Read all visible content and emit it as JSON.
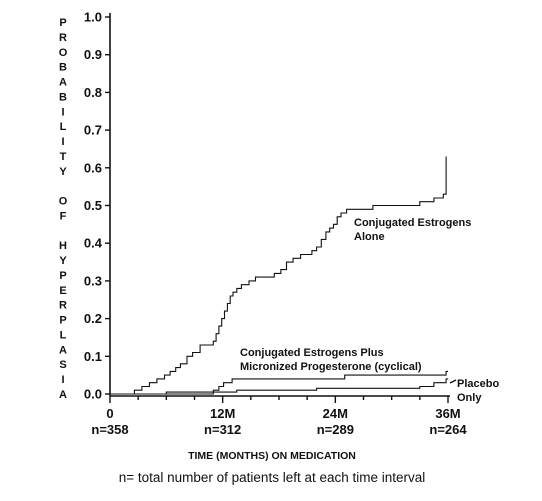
{
  "chart_data": {
    "type": "line",
    "step": true,
    "ylabel": "PROBABILITY OF HYPERPLASIA",
    "xlabel": "TIME (MONTHS) ON MEDICATION",
    "ylim": [
      0.0,
      1.0
    ],
    "xlim": [
      0,
      36
    ],
    "y_ticks": [
      "0.0",
      "0.1",
      "0.2",
      "0.3",
      "0.4",
      "0.5",
      "0.6",
      "0.7",
      "0.8",
      "0.9",
      "1.0"
    ],
    "x_ticks": [
      {
        "value": 0,
        "label": "0",
        "n_label": "n=358"
      },
      {
        "value": 12,
        "label": "12M",
        "n_label": "n=312"
      },
      {
        "value": 24,
        "label": "24M",
        "n_label": "n=289"
      },
      {
        "value": 36,
        "label": "36M",
        "n_label": "n=264"
      }
    ],
    "grid": false,
    "series": [
      {
        "name": "Conjugated Estrogens Alone",
        "label_lines": [
          "Conjugated Estrogens",
          "Alone"
        ],
        "points": [
          [
            0,
            0.0
          ],
          [
            2.6,
            0.01
          ],
          [
            3.4,
            0.02
          ],
          [
            4.2,
            0.03
          ],
          [
            5.0,
            0.04
          ],
          [
            5.8,
            0.05
          ],
          [
            6.4,
            0.06
          ],
          [
            7.0,
            0.07
          ],
          [
            7.5,
            0.08
          ],
          [
            8.2,
            0.1
          ],
          [
            8.8,
            0.11
          ],
          [
            9.6,
            0.13
          ],
          [
            11.0,
            0.14
          ],
          [
            11.3,
            0.16
          ],
          [
            11.6,
            0.18
          ],
          [
            11.9,
            0.2
          ],
          [
            12.2,
            0.22
          ],
          [
            12.5,
            0.24
          ],
          [
            12.8,
            0.26
          ],
          [
            13.1,
            0.27
          ],
          [
            13.5,
            0.28
          ],
          [
            14.0,
            0.29
          ],
          [
            14.8,
            0.3
          ],
          [
            15.5,
            0.31
          ],
          [
            17.5,
            0.32
          ],
          [
            18.2,
            0.33
          ],
          [
            18.8,
            0.35
          ],
          [
            19.5,
            0.36
          ],
          [
            20.3,
            0.37
          ],
          [
            21.5,
            0.38
          ],
          [
            22.0,
            0.39
          ],
          [
            22.5,
            0.41
          ],
          [
            23.0,
            0.43
          ],
          [
            23.4,
            0.44
          ],
          [
            23.8,
            0.45
          ],
          [
            24.2,
            0.47
          ],
          [
            24.6,
            0.48
          ],
          [
            25.2,
            0.49
          ],
          [
            28.0,
            0.5
          ],
          [
            33.0,
            0.51
          ],
          [
            34.5,
            0.52
          ],
          [
            35.5,
            0.53
          ],
          [
            35.8,
            0.63
          ]
        ]
      },
      {
        "name": "Conjugated Estrogens Plus Micronized Progesterone (cyclical)",
        "label_lines": [
          "Conjugated Estrogens Plus",
          "Micronized Progesterone (cyclical)"
        ],
        "points": [
          [
            0,
            0.0
          ],
          [
            11.0,
            0.01
          ],
          [
            11.6,
            0.02
          ],
          [
            12.1,
            0.03
          ],
          [
            13.0,
            0.04
          ],
          [
            25.0,
            0.05
          ],
          [
            35.8,
            0.06
          ]
        ]
      },
      {
        "name": "Placebo Only",
        "label_lines": [
          "Placebo",
          "Only"
        ],
        "points": [
          [
            0,
            0.0
          ],
          [
            6.0,
            0.005
          ],
          [
            13.5,
            0.01
          ],
          [
            22.0,
            0.015
          ],
          [
            33.0,
            0.02
          ],
          [
            34.5,
            0.03
          ],
          [
            35.8,
            0.04
          ]
        ]
      }
    ],
    "footnote": "n= total number of patients left at each time interval"
  }
}
